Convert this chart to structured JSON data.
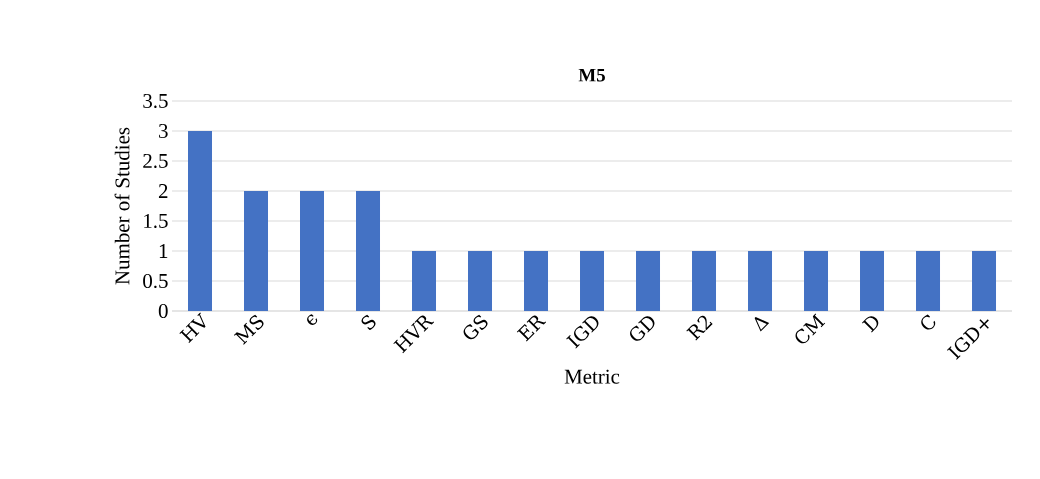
{
  "chart_data": {
    "type": "bar",
    "title": "M5",
    "xlabel": "Metric",
    "ylabel": "Number of Studies",
    "categories": [
      "HV",
      "MS",
      "ϵ",
      "S",
      "HVR",
      "GS",
      "ER",
      "IGD",
      "GD",
      "R2",
      "Δ",
      "CM",
      "D",
      "C",
      "IGD+"
    ],
    "values": [
      3,
      2,
      2,
      2,
      1,
      1,
      1,
      1,
      1,
      1,
      1,
      1,
      1,
      1,
      1
    ],
    "color": "#4472c4",
    "ylim": [
      0,
      3.5
    ],
    "yticks": [
      0,
      0.5,
      1,
      1.5,
      2,
      2.5,
      3,
      3.5
    ],
    "grid": "y"
  }
}
